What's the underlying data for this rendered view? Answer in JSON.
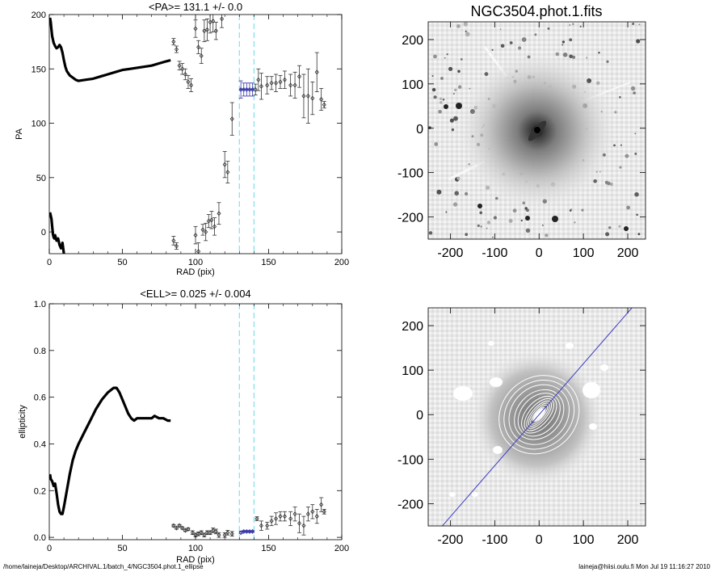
{
  "chart_data": [
    {
      "type": "scatter",
      "panel": "pa",
      "title": "<PA>= 131.1 +/-   0.0",
      "xlabel": "RAD (pix)",
      "ylabel": "PA",
      "xlim": [
        0,
        200
      ],
      "ylim": [
        -20,
        200
      ],
      "xticks": [
        0,
        50,
        100,
        150,
        200
      ],
      "yticks": [
        0,
        50,
        100,
        150,
        200
      ],
      "grid": false,
      "vlines": [
        130,
        140
      ],
      "inner_curves": [
        [
          [
            0.5,
            197
          ],
          [
            1,
            193
          ],
          [
            1.5,
            186
          ],
          [
            2,
            180
          ],
          [
            3,
            174
          ],
          [
            4,
            171
          ],
          [
            5,
            169
          ],
          [
            6,
            170
          ],
          [
            7,
            172
          ],
          [
            8,
            170
          ],
          [
            9,
            165
          ],
          [
            10,
            158
          ],
          [
            11,
            152
          ],
          [
            12,
            148
          ],
          [
            14,
            144
          ],
          [
            16,
            142
          ],
          [
            18,
            140
          ],
          [
            20,
            139
          ],
          [
            25,
            140
          ],
          [
            30,
            141
          ],
          [
            35,
            143
          ],
          [
            40,
            145
          ],
          [
            45,
            147
          ],
          [
            50,
            149
          ],
          [
            55,
            150
          ],
          [
            60,
            151
          ],
          [
            65,
            152
          ],
          [
            70,
            153
          ],
          [
            75,
            155
          ],
          [
            80,
            157
          ],
          [
            83,
            158
          ]
        ],
        [
          [
            0.5,
            18
          ],
          [
            1,
            15
          ],
          [
            1.5,
            12
          ],
          [
            2,
            5
          ],
          [
            2.5,
            -2
          ],
          [
            3,
            -5
          ],
          [
            3.5,
            -6
          ],
          [
            4,
            -3
          ],
          [
            5,
            -8
          ],
          [
            6,
            -6
          ],
          [
            7,
            -12
          ],
          [
            8,
            -15
          ],
          [
            9,
            -10
          ],
          [
            10,
            -20
          ]
        ]
      ],
      "points": [
        {
          "x": 85,
          "y": 175,
          "e": 3
        },
        {
          "x": 87,
          "y": 168,
          "e": 3
        },
        {
          "x": 89,
          "y": 153,
          "e": 4
        },
        {
          "x": 91,
          "y": 150,
          "e": 5
        },
        {
          "x": 93,
          "y": 145,
          "e": 5
        },
        {
          "x": 95,
          "y": 138,
          "e": 6
        },
        {
          "x": 97,
          "y": 135,
          "e": 6
        },
        {
          "x": 100,
          "y": 187,
          "e": 8
        },
        {
          "x": 102,
          "y": 170,
          "e": 6
        },
        {
          "x": 104,
          "y": 162,
          "e": 7
        },
        {
          "x": 106,
          "y": 185,
          "e": 10
        },
        {
          "x": 108,
          "y": 186,
          "e": 10
        },
        {
          "x": 110,
          "y": 193,
          "e": 10
        },
        {
          "x": 112,
          "y": 194,
          "e": 10
        },
        {
          "x": 114,
          "y": 185,
          "e": 8
        },
        {
          "x": 118,
          "y": 196,
          "e": 8
        },
        {
          "x": 85,
          "y": -8,
          "e": 4
        },
        {
          "x": 87,
          "y": -13,
          "e": 3
        },
        {
          "x": 100,
          "y": -3,
          "e": 8
        },
        {
          "x": 102,
          "y": -18,
          "e": 8
        },
        {
          "x": 105,
          "y": 2,
          "e": 5
        },
        {
          "x": 107,
          "y": 0,
          "e": 8
        },
        {
          "x": 109,
          "y": 10,
          "e": 6
        },
        {
          "x": 111,
          "y": 11,
          "e": 8
        },
        {
          "x": 113,
          "y": 5,
          "e": 8
        },
        {
          "x": 116,
          "y": 17,
          "e": 10
        },
        {
          "x": 120,
          "y": 62,
          "e": 12
        },
        {
          "x": 122,
          "y": 55,
          "e": 10
        },
        {
          "x": 125,
          "y": 104,
          "e": 15
        },
        {
          "x": 131,
          "y": 131,
          "e": 8
        },
        {
          "x": 133,
          "y": 131,
          "e": 6
        },
        {
          "x": 135,
          "y": 131,
          "e": 6
        },
        {
          "x": 137,
          "y": 131,
          "e": 6
        },
        {
          "x": 139,
          "y": 131,
          "e": 6
        },
        {
          "x": 141,
          "y": 131,
          "e": 5
        },
        {
          "x": 143,
          "y": 140,
          "e": 10
        },
        {
          "x": 145,
          "y": 134,
          "e": 12
        },
        {
          "x": 149,
          "y": 135,
          "e": 8
        },
        {
          "x": 152,
          "y": 137,
          "e": 6
        },
        {
          "x": 155,
          "y": 137,
          "e": 8
        },
        {
          "x": 158,
          "y": 138,
          "e": 6
        },
        {
          "x": 161,
          "y": 140,
          "e": 8
        },
        {
          "x": 165,
          "y": 135,
          "e": 10
        },
        {
          "x": 168,
          "y": 135,
          "e": 12
        },
        {
          "x": 171,
          "y": 143,
          "e": 10
        },
        {
          "x": 174,
          "y": 125,
          "e": 20
        },
        {
          "x": 177,
          "y": 125,
          "e": 25
        },
        {
          "x": 180,
          "y": 123,
          "e": 15
        },
        {
          "x": 183,
          "y": 147,
          "e": 18
        },
        {
          "x": 186,
          "y": 122,
          "e": 10
        },
        {
          "x": 188,
          "y": 117,
          "e": 3
        }
      ],
      "highlight_range": [
        130,
        140
      ],
      "highlight_value": 131.1
    },
    {
      "type": "scatter",
      "panel": "ell",
      "title": "<ELL>= 0.025 +/-  0.004",
      "xlabel": "RAD (pix)",
      "ylabel": "ellipticity",
      "xlim": [
        0,
        200
      ],
      "ylim": [
        -0.01,
        1.0
      ],
      "xticks": [
        0,
        50,
        100,
        150,
        200
      ],
      "yticks": [
        0.0,
        0.2,
        0.4,
        0.6,
        0.8,
        1.0
      ],
      "ytick_labels": [
        "0.0",
        "0.2",
        "0.4",
        "0.6",
        "0.8",
        "1.0"
      ],
      "grid": false,
      "vlines": [
        130,
        140
      ],
      "inner_curve": [
        [
          0.5,
          0.27
        ],
        [
          1,
          0.25
        ],
        [
          2,
          0.24
        ],
        [
          3,
          0.22
        ],
        [
          4,
          0.23
        ],
        [
          5,
          0.19
        ],
        [
          6,
          0.14
        ],
        [
          7,
          0.11
        ],
        [
          8,
          0.1
        ],
        [
          9,
          0.1
        ],
        [
          10,
          0.13
        ],
        [
          12,
          0.2
        ],
        [
          14,
          0.27
        ],
        [
          16,
          0.33
        ],
        [
          18,
          0.37
        ],
        [
          20,
          0.4
        ],
        [
          24,
          0.45
        ],
        [
          28,
          0.5
        ],
        [
          32,
          0.55
        ],
        [
          36,
          0.59
        ],
        [
          40,
          0.62
        ],
        [
          44,
          0.64
        ],
        [
          46,
          0.64
        ],
        [
          48,
          0.62
        ],
        [
          50,
          0.59
        ],
        [
          52,
          0.56
        ],
        [
          54,
          0.53
        ],
        [
          56,
          0.51
        ],
        [
          58,
          0.5
        ],
        [
          60,
          0.51
        ],
        [
          62,
          0.51
        ],
        [
          65,
          0.51
        ],
        [
          68,
          0.51
        ],
        [
          70,
          0.51
        ],
        [
          72,
          0.52
        ],
        [
          75,
          0.51
        ],
        [
          78,
          0.51
        ],
        [
          81,
          0.5
        ],
        [
          83,
          0.5
        ]
      ],
      "points": [
        {
          "x": 85,
          "y": 0.05,
          "e": 0.005
        },
        {
          "x": 87,
          "y": 0.04,
          "e": 0.005
        },
        {
          "x": 89,
          "y": 0.05,
          "e": 0.005
        },
        {
          "x": 91,
          "y": 0.04,
          "e": 0.005
        },
        {
          "x": 93,
          "y": 0.03,
          "e": 0.005
        },
        {
          "x": 95,
          "y": 0.035,
          "e": 0.005
        },
        {
          "x": 98,
          "y": 0.02,
          "e": 0.008
        },
        {
          "x": 100,
          "y": 0.01,
          "e": 0.008
        },
        {
          "x": 102,
          "y": 0.015,
          "e": 0.008
        },
        {
          "x": 104,
          "y": 0.02,
          "e": 0.008
        },
        {
          "x": 106,
          "y": 0.01,
          "e": 0.008
        },
        {
          "x": 108,
          "y": 0.02,
          "e": 0.008
        },
        {
          "x": 110,
          "y": 0.02,
          "e": 0.008
        },
        {
          "x": 112,
          "y": 0.03,
          "e": 0.01
        },
        {
          "x": 114,
          "y": 0.025,
          "e": 0.01
        },
        {
          "x": 116,
          "y": 0.01,
          "e": 0.01
        },
        {
          "x": 120,
          "y": 0.01,
          "e": 0.01
        },
        {
          "x": 122,
          "y": 0.02,
          "e": 0.01
        },
        {
          "x": 125,
          "y": 0.015,
          "e": 0.01
        },
        {
          "x": 131,
          "y": 0.02,
          "e": 0.004
        },
        {
          "x": 133,
          "y": 0.025,
          "e": 0.004
        },
        {
          "x": 135,
          "y": 0.025,
          "e": 0.004
        },
        {
          "x": 137,
          "y": 0.025,
          "e": 0.004
        },
        {
          "x": 139,
          "y": 0.025,
          "e": 0.004
        },
        {
          "x": 142,
          "y": 0.08,
          "e": 0.008
        },
        {
          "x": 145,
          "y": 0.05,
          "e": 0.02
        },
        {
          "x": 149,
          "y": 0.05,
          "e": 0.015
        },
        {
          "x": 152,
          "y": 0.07,
          "e": 0.02
        },
        {
          "x": 155,
          "y": 0.08,
          "e": 0.025
        },
        {
          "x": 158,
          "y": 0.09,
          "e": 0.02
        },
        {
          "x": 161,
          "y": 0.09,
          "e": 0.02
        },
        {
          "x": 165,
          "y": 0.08,
          "e": 0.03
        },
        {
          "x": 168,
          "y": 0.1,
          "e": 0.03
        },
        {
          "x": 171,
          "y": 0.06,
          "e": 0.04
        },
        {
          "x": 174,
          "y": 0.05,
          "e": 0.04
        },
        {
          "x": 177,
          "y": 0.1,
          "e": 0.03
        },
        {
          "x": 180,
          "y": 0.11,
          "e": 0.03
        },
        {
          "x": 183,
          "y": 0.09,
          "e": 0.03
        },
        {
          "x": 186,
          "y": 0.14,
          "e": 0.03
        },
        {
          "x": 188,
          "y": 0.11,
          "e": 0.01
        }
      ],
      "highlight_range": [
        130,
        140
      ],
      "highlight_value": 0.025
    },
    {
      "type": "image",
      "panel": "img1",
      "title": "NGC3504.phot.1.fits",
      "xlim": [
        -250,
        240
      ],
      "ylim": [
        -250,
        240
      ],
      "xticks": [
        -200,
        -100,
        0,
        100,
        200
      ],
      "yticks": [
        -200,
        -100,
        0,
        100,
        200
      ]
    },
    {
      "type": "image",
      "panel": "img2",
      "title": "",
      "xlim": [
        -250,
        240
      ],
      "ylim": [
        -250,
        240
      ],
      "xticks": [
        -200,
        -100,
        0,
        100,
        200
      ],
      "yticks": [
        -200,
        -100,
        0,
        100,
        200
      ],
      "ellipse_pa_deg": 131.1,
      "ellipse_ell": 0.025
    }
  ],
  "colors": {
    "axis": "#000000",
    "data": "#000000",
    "highlight": "#3a3aa6",
    "vline": "#80e0ec",
    "contour": "#ffffff",
    "pa_line": "#3f3fc2"
  },
  "footer": {
    "left": "/home/laineja/Desktop/ARCHIVAL.1/batch_4/NGC3504.phot.1_ellipse",
    "right": "laineja@hiisi.oulu.fi  Mon Jul 19 11:16:27 2010"
  }
}
